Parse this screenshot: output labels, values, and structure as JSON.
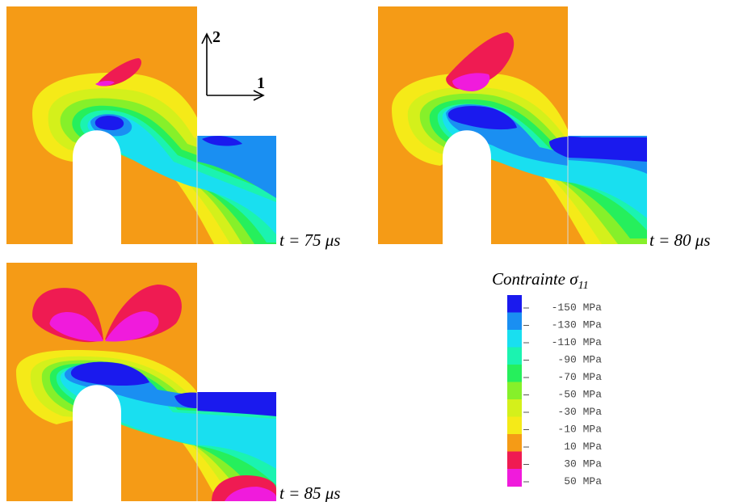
{
  "panels": [
    {
      "id": "p75",
      "caption": "t = 75 μs"
    },
    {
      "id": "p80",
      "caption": "t = 80 μs"
    },
    {
      "id": "p85",
      "caption": "t = 85 μs"
    }
  ],
  "axes": {
    "horizontal_label": "1",
    "vertical_label": "2"
  },
  "legend": {
    "title": "Contrainte σ",
    "title_subscript": "11",
    "entries": [
      {
        "label": "-150 MPa",
        "color": "#1a1aee"
      },
      {
        "label": "-130 MPa",
        "color": "#1a8ff2"
      },
      {
        "label": "-110 MPa",
        "color": "#19dff0"
      },
      {
        "label": "-90 MPa",
        "color": "#1bf3b0"
      },
      {
        "label": "-70 MPa",
        "color": "#26ef5c"
      },
      {
        "label": "-50 MPa",
        "color": "#86f02a"
      },
      {
        "label": "-30 MPa",
        "color": "#d4f01b"
      },
      {
        "label": "-10 MPa",
        "color": "#f5ea18"
      },
      {
        "label": "10 MPa",
        "color": "#f59b16"
      },
      {
        "label": "30 MPa",
        "color": "#ef1b52"
      },
      {
        "label": "50 MPa",
        "color": "#f01bdc"
      }
    ]
  },
  "colors": {
    "background_material": "#f59b16",
    "hole": "#ffffff"
  }
}
